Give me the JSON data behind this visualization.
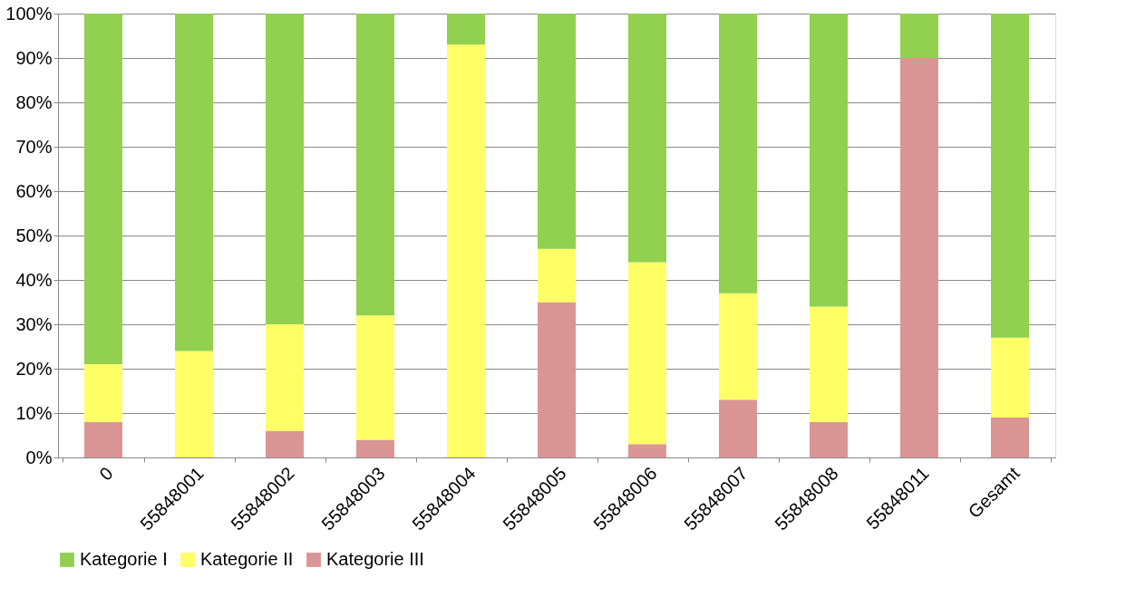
{
  "chart_data": {
    "type": "bar",
    "stacked": true,
    "categories": [
      "0",
      "55848001",
      "55848002",
      "55848003",
      "55848004",
      "55848005",
      "55848006",
      "55848007",
      "55848008",
      "55848011",
      "Gesamt"
    ],
    "series": [
      {
        "name": "Kategorie III",
        "color": "#d99694",
        "values": [
          8,
          0,
          6,
          4,
          0,
          35,
          3,
          13,
          8,
          90,
          9
        ]
      },
      {
        "name": "Kategorie II",
        "color": "#ffff66",
        "values": [
          13,
          24,
          24,
          28,
          93,
          12,
          41,
          24,
          26,
          0,
          18
        ]
      },
      {
        "name": "Kategorie I",
        "color": "#92d050",
        "values": [
          79,
          76,
          70,
          68,
          7,
          53,
          56,
          63,
          66,
          10,
          73
        ]
      }
    ],
    "ylim": [
      0,
      100
    ],
    "yticks": [
      {
        "value": 0,
        "label": "0%"
      },
      {
        "value": 10,
        "label": "10%"
      },
      {
        "value": 20,
        "label": "20%"
      },
      {
        "value": 30,
        "label": "30%"
      },
      {
        "value": 40,
        "label": "40%"
      },
      {
        "value": 50,
        "label": "50%"
      },
      {
        "value": 60,
        "label": "60%"
      },
      {
        "value": 70,
        "label": "70%"
      },
      {
        "value": 80,
        "label": "80%"
      },
      {
        "value": 90,
        "label": "90%"
      },
      {
        "value": 100,
        "label": "100%"
      }
    ],
    "grid": "y",
    "legend": "bottom"
  }
}
